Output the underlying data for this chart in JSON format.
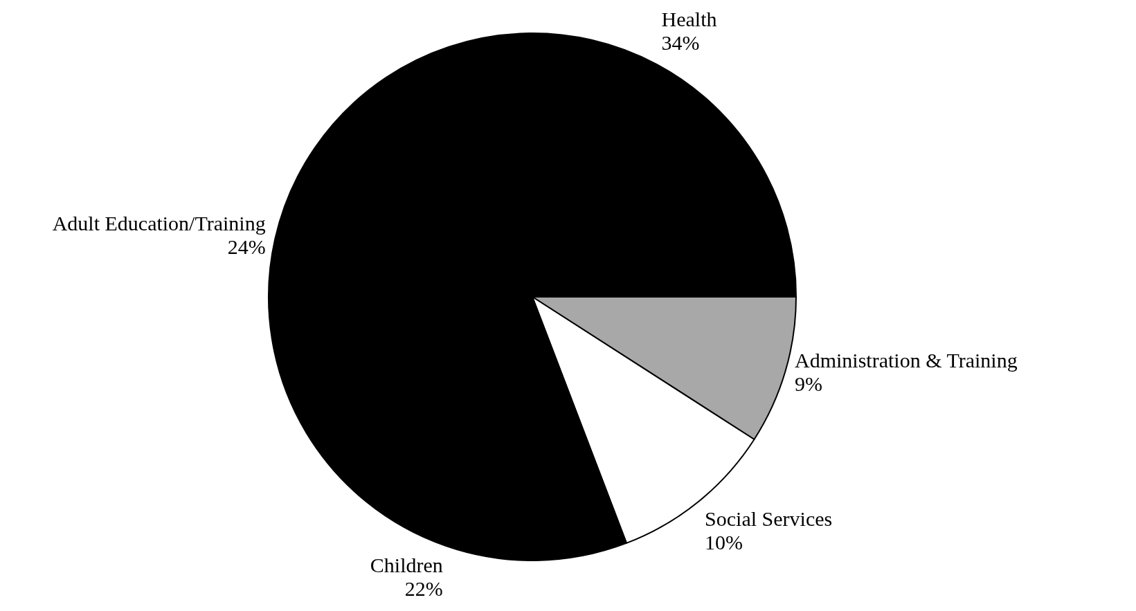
{
  "chart_data": {
    "type": "pie",
    "categories": [
      "Administration & Training",
      "Social Services",
      "Children",
      "Adult Education/Training",
      "Health"
    ],
    "values": [
      9,
      10,
      22,
      24,
      34
    ],
    "value_labels": [
      "9%",
      "10%",
      "22%",
      "24%",
      "34%"
    ],
    "colors": [
      "#a8a8a8",
      "#ffffff",
      "#000000",
      "#000000",
      "#000000"
    ],
    "legend": false
  }
}
